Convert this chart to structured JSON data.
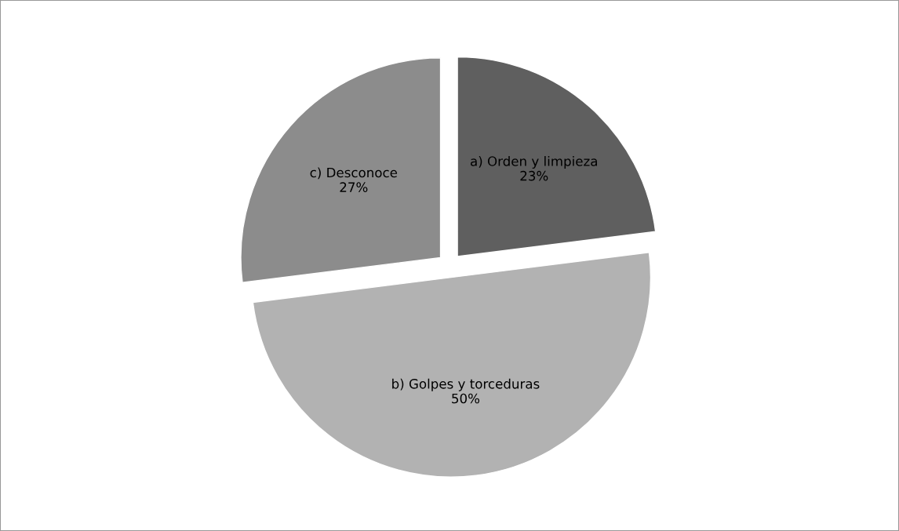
{
  "chart_data": {
    "type": "pie",
    "categories": [
      "a) Orden y limpieza",
      "b) Golpes y torceduras",
      "c) Desconoce"
    ],
    "values": [
      23,
      50,
      27
    ],
    "value_labels": [
      "23%",
      "50%",
      "27%"
    ],
    "colors": [
      "#5f5f5f",
      "#b2b2b2",
      "#8c8c8c"
    ],
    "legend": false
  }
}
